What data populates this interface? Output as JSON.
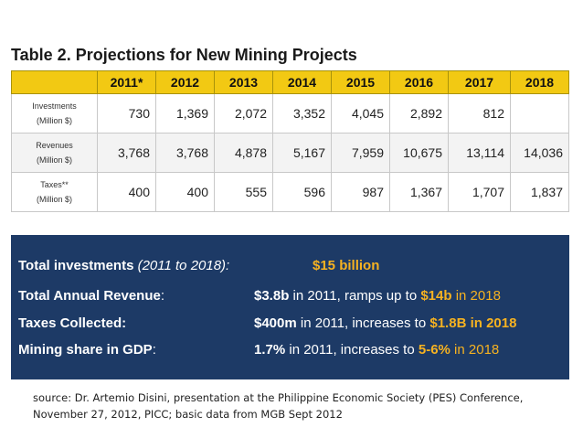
{
  "title": "Table 2. Projections for New Mining Projects",
  "table": {
    "years": [
      "2011*",
      "2012",
      "2013",
      "2014",
      "2015",
      "2016",
      "2017",
      "2018"
    ],
    "rows": [
      {
        "label_line1": "Investments",
        "label_line2": "(Million $)",
        "values": [
          "730",
          "1,369",
          "2,072",
          "3,352",
          "4,045",
          "2,892",
          "812",
          ""
        ]
      },
      {
        "label_line1": "Revenues",
        "label_line2": "(Million $)",
        "values": [
          "3,768",
          "3,768",
          "4,878",
          "5,167",
          "7,959",
          "10,675",
          "13,114",
          "14,036"
        ]
      },
      {
        "label_line1": "Taxes**",
        "label_line2": "(Million $)",
        "values": [
          "400",
          "400",
          "555",
          "596",
          "987",
          "1,367",
          "1,707",
          "1,837"
        ]
      }
    ]
  },
  "summary": {
    "investments": {
      "label": "Total investments",
      "label_note": "(2011 to 2018):",
      "value": "$15 billion"
    },
    "revenue": {
      "label": "Total Annual Revenue",
      "label_suffix": ":",
      "v1": "$3.8b",
      "v2": " in 2011, ramps up to ",
      "v3": "$14b",
      "v4": " in 2018"
    },
    "taxes": {
      "label": "Taxes Collected:",
      "v1": "$400m",
      "v2": " in 2011, increases to ",
      "v3": "$1.8B in 2018"
    },
    "gdp": {
      "label": "Mining share in GDP",
      "label_suffix": ":",
      "v1": "1.7%",
      "v2": " in 2011, increases to ",
      "v3": "5-6%",
      "v4": " in 2018"
    }
  },
  "source": "source: Dr. Artemio Disini, presentation at the Philippine Economic Society (PES) Conference, November 27, 2012, PICC; basic data from MGB Sept 2012",
  "colors": {
    "header_yellow": "#f2c913",
    "box_blue": "#1d3a66",
    "highlight_gold": "#f6b221"
  }
}
